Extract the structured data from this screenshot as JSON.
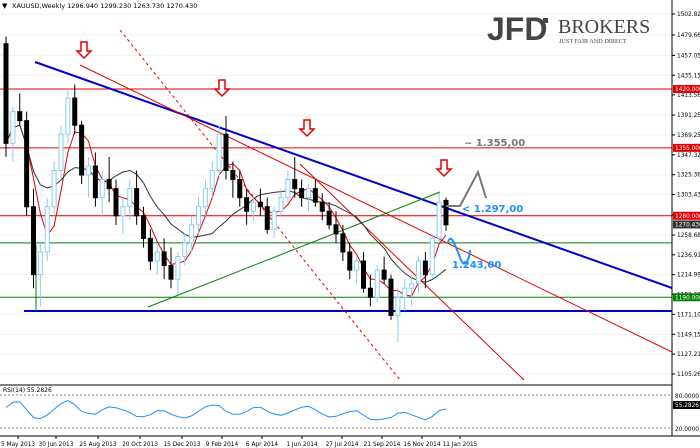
{
  "header": {
    "symbol_menu_icon": "triangle-down-icon",
    "symbol_line": "XAUUSD,Weekly  1296.940 1299.230 1263.730 1270.430"
  },
  "logo": {
    "brand_main": "JFD",
    "brand_right": "BROKERS",
    "tagline": "JUST FAIR AND DIRECT"
  },
  "rsi": {
    "label": "RSI(14) 55.2826",
    "level_top": "80.0000",
    "level_bottom": "20.0000",
    "value_label": "55.2826"
  },
  "chart_data": {
    "type": "candlestick",
    "timeframe": "Weekly",
    "ylim": [
      1105.265,
      1502.82
    ],
    "x_ticks": [
      "5 May 2013",
      "30 Jun 2013",
      "25 Aug 2013",
      "20 Oct 2013",
      "15 Dec 2013",
      "9 Feb 2014",
      "6 Apr 2014",
      "1 Jun 2014",
      "27 Jul 2014",
      "21 Sep 2014",
      "16 Nov 2014",
      "11 Jan 2015"
    ],
    "y_ticks": [
      "1502.820",
      "1479.660",
      "1457.050",
      "1435.150",
      "1413.560",
      "1391.250",
      "1369.250",
      "1347.325",
      "1325.360",
      "1303.435",
      "1280.950",
      "1258.680",
      "1236.910",
      "1214.990",
      "1193.270",
      "1171.100",
      "1149.155",
      "1127.210",
      "1105.265"
    ],
    "price_labels": [
      {
        "text": "1420.000",
        "value": 1420.0,
        "color": "#e00000"
      },
      {
        "text": "1355.000",
        "value": 1355.0,
        "color": "#e00000"
      },
      {
        "text": "1280.000",
        "value": 1280.0,
        "color": "#e00000"
      },
      {
        "text": "1270.430",
        "value": 1270.43,
        "color": "#333333"
      },
      {
        "text": "1190.000",
        "value": 1190.0,
        "color": "#008000"
      }
    ],
    "horizontal_levels": [
      {
        "value": 1420,
        "color": "#e00000"
      },
      {
        "value": 1355,
        "color": "#e00000"
      },
      {
        "value": 1280,
        "color": "#e00000"
      },
      {
        "value": 1250,
        "color": "#008000"
      },
      {
        "value": 1190,
        "color": "#008000"
      },
      {
        "value": 1180,
        "color": "#0000cc"
      }
    ],
    "annotations": [
      {
        "text": "~ 1.355,00",
        "color": "#777777"
      },
      {
        "text": "< 1.297,00",
        "color": "#1e90ff"
      },
      {
        "text": "1.243,00",
        "color": "#1e90ff"
      }
    ],
    "colors": {
      "bull_candle": "#87cefa",
      "bear_candle": "#000000",
      "ma_fast": "#e00000",
      "ma_slow": "#333333",
      "rsi_line": "#1e90ff",
      "main_trendline": "#0000cc",
      "arrow": "#e00000"
    },
    "candles": [
      [
        1470,
        1478,
        1345,
        1360
      ],
      [
        1360,
        1400,
        1340,
        1395
      ],
      [
        1395,
        1415,
        1380,
        1385
      ],
      [
        1385,
        1395,
        1280,
        1290
      ],
      [
        1290,
        1310,
        1200,
        1215
      ],
      [
        1215,
        1250,
        1180,
        1240
      ],
      [
        1240,
        1300,
        1230,
        1290
      ],
      [
        1290,
        1340,
        1280,
        1330
      ],
      [
        1330,
        1380,
        1320,
        1370
      ],
      [
        1370,
        1420,
        1360,
        1410
      ],
      [
        1410,
        1425,
        1370,
        1380
      ],
      [
        1380,
        1385,
        1315,
        1325
      ],
      [
        1325,
        1345,
        1300,
        1335
      ],
      [
        1335,
        1350,
        1290,
        1300
      ],
      [
        1300,
        1330,
        1280,
        1320
      ],
      [
        1320,
        1345,
        1295,
        1310
      ],
      [
        1310,
        1320,
        1270,
        1280
      ],
      [
        1280,
        1300,
        1260,
        1290
      ],
      [
        1290,
        1320,
        1275,
        1310
      ],
      [
        1310,
        1330,
        1270,
        1280
      ],
      [
        1280,
        1290,
        1245,
        1255
      ],
      [
        1255,
        1265,
        1220,
        1230
      ],
      [
        1230,
        1250,
        1215,
        1240
      ],
      [
        1240,
        1255,
        1210,
        1225
      ],
      [
        1225,
        1245,
        1200,
        1210
      ],
      [
        1210,
        1240,
        1195,
        1235
      ],
      [
        1235,
        1260,
        1225,
        1250
      ],
      [
        1250,
        1280,
        1240,
        1270
      ],
      [
        1270,
        1300,
        1260,
        1290
      ],
      [
        1290,
        1320,
        1280,
        1310
      ],
      [
        1310,
        1340,
        1300,
        1330
      ],
      [
        1330,
        1380,
        1320,
        1370
      ],
      [
        1370,
        1390,
        1320,
        1330
      ],
      [
        1330,
        1340,
        1300,
        1320
      ],
      [
        1320,
        1330,
        1290,
        1300
      ],
      [
        1300,
        1310,
        1270,
        1285
      ],
      [
        1285,
        1300,
        1275,
        1295
      ],
      [
        1295,
        1310,
        1280,
        1290
      ],
      [
        1290,
        1300,
        1260,
        1265
      ],
      [
        1265,
        1290,
        1255,
        1285
      ],
      [
        1285,
        1310,
        1280,
        1300
      ],
      [
        1300,
        1330,
        1295,
        1320
      ],
      [
        1320,
        1345,
        1300,
        1310
      ],
      [
        1310,
        1320,
        1290,
        1300
      ],
      [
        1300,
        1315,
        1285,
        1310
      ],
      [
        1310,
        1320,
        1290,
        1295
      ],
      [
        1295,
        1305,
        1275,
        1285
      ],
      [
        1285,
        1295,
        1265,
        1270
      ],
      [
        1270,
        1285,
        1250,
        1260
      ],
      [
        1260,
        1270,
        1230,
        1240
      ],
      [
        1240,
        1250,
        1210,
        1220
      ],
      [
        1220,
        1235,
        1205,
        1230
      ],
      [
        1230,
        1240,
        1195,
        1200
      ],
      [
        1200,
        1215,
        1180,
        1190
      ],
      [
        1190,
        1225,
        1185,
        1220
      ],
      [
        1220,
        1235,
        1205,
        1210
      ],
      [
        1210,
        1215,
        1165,
        1170
      ],
      [
        1170,
        1200,
        1140,
        1190
      ],
      [
        1190,
        1210,
        1175,
        1200
      ],
      [
        1200,
        1215,
        1180,
        1205
      ],
      [
        1205,
        1235,
        1195,
        1230
      ],
      [
        1230,
        1240,
        1200,
        1215
      ],
      [
        1215,
        1260,
        1210,
        1255
      ],
      [
        1255,
        1305,
        1250,
        1295
      ],
      [
        1297,
        1300,
        1263,
        1270
      ]
    ]
  }
}
